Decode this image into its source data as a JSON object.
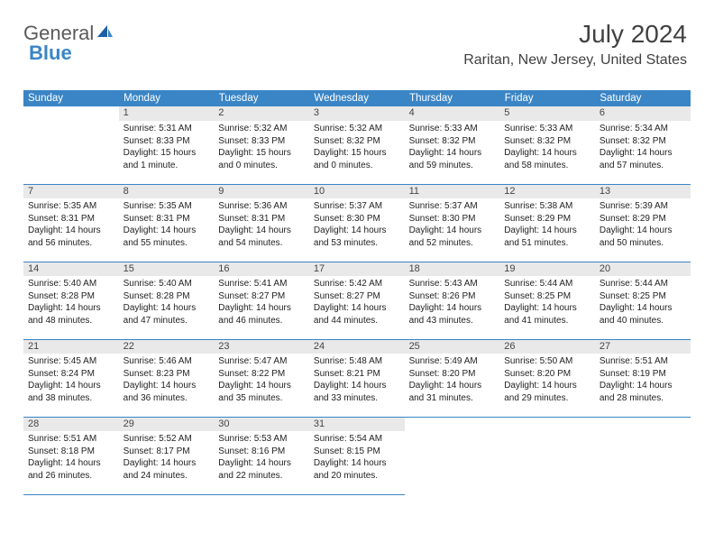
{
  "logo": {
    "text1": "General",
    "text2": "Blue"
  },
  "header": {
    "month": "July 2024",
    "location": "Raritan, New Jersey, United States"
  },
  "style": {
    "header_bg": "#3a85c6",
    "header_fg": "#ffffff",
    "daynum_bg": "#e9e9e9",
    "daynum_fg": "#444444",
    "divider_color": "#3a85c6",
    "body_font_size": 10,
    "title_font_size": 28,
    "location_font_size": 16,
    "weekday_font_size": 11.5
  },
  "weekdays": [
    "Sunday",
    "Monday",
    "Tuesday",
    "Wednesday",
    "Thursday",
    "Friday",
    "Saturday"
  ],
  "startOffset": 1,
  "days": [
    {
      "n": 1,
      "sr": "5:31 AM",
      "ss": "8:33 PM",
      "dl": "15 hours and 1 minute."
    },
    {
      "n": 2,
      "sr": "5:32 AM",
      "ss": "8:33 PM",
      "dl": "15 hours and 0 minutes."
    },
    {
      "n": 3,
      "sr": "5:32 AM",
      "ss": "8:32 PM",
      "dl": "15 hours and 0 minutes."
    },
    {
      "n": 4,
      "sr": "5:33 AM",
      "ss": "8:32 PM",
      "dl": "14 hours and 59 minutes."
    },
    {
      "n": 5,
      "sr": "5:33 AM",
      "ss": "8:32 PM",
      "dl": "14 hours and 58 minutes."
    },
    {
      "n": 6,
      "sr": "5:34 AM",
      "ss": "8:32 PM",
      "dl": "14 hours and 57 minutes."
    },
    {
      "n": 7,
      "sr": "5:35 AM",
      "ss": "8:31 PM",
      "dl": "14 hours and 56 minutes."
    },
    {
      "n": 8,
      "sr": "5:35 AM",
      "ss": "8:31 PM",
      "dl": "14 hours and 55 minutes."
    },
    {
      "n": 9,
      "sr": "5:36 AM",
      "ss": "8:31 PM",
      "dl": "14 hours and 54 minutes."
    },
    {
      "n": 10,
      "sr": "5:37 AM",
      "ss": "8:30 PM",
      "dl": "14 hours and 53 minutes."
    },
    {
      "n": 11,
      "sr": "5:37 AM",
      "ss": "8:30 PM",
      "dl": "14 hours and 52 minutes."
    },
    {
      "n": 12,
      "sr": "5:38 AM",
      "ss": "8:29 PM",
      "dl": "14 hours and 51 minutes."
    },
    {
      "n": 13,
      "sr": "5:39 AM",
      "ss": "8:29 PM",
      "dl": "14 hours and 50 minutes."
    },
    {
      "n": 14,
      "sr": "5:40 AM",
      "ss": "8:28 PM",
      "dl": "14 hours and 48 minutes."
    },
    {
      "n": 15,
      "sr": "5:40 AM",
      "ss": "8:28 PM",
      "dl": "14 hours and 47 minutes."
    },
    {
      "n": 16,
      "sr": "5:41 AM",
      "ss": "8:27 PM",
      "dl": "14 hours and 46 minutes."
    },
    {
      "n": 17,
      "sr": "5:42 AM",
      "ss": "8:27 PM",
      "dl": "14 hours and 44 minutes."
    },
    {
      "n": 18,
      "sr": "5:43 AM",
      "ss": "8:26 PM",
      "dl": "14 hours and 43 minutes."
    },
    {
      "n": 19,
      "sr": "5:44 AM",
      "ss": "8:25 PM",
      "dl": "14 hours and 41 minutes."
    },
    {
      "n": 20,
      "sr": "5:44 AM",
      "ss": "8:25 PM",
      "dl": "14 hours and 40 minutes."
    },
    {
      "n": 21,
      "sr": "5:45 AM",
      "ss": "8:24 PM",
      "dl": "14 hours and 38 minutes."
    },
    {
      "n": 22,
      "sr": "5:46 AM",
      "ss": "8:23 PM",
      "dl": "14 hours and 36 minutes."
    },
    {
      "n": 23,
      "sr": "5:47 AM",
      "ss": "8:22 PM",
      "dl": "14 hours and 35 minutes."
    },
    {
      "n": 24,
      "sr": "5:48 AM",
      "ss": "8:21 PM",
      "dl": "14 hours and 33 minutes."
    },
    {
      "n": 25,
      "sr": "5:49 AM",
      "ss": "8:20 PM",
      "dl": "14 hours and 31 minutes."
    },
    {
      "n": 26,
      "sr": "5:50 AM",
      "ss": "8:20 PM",
      "dl": "14 hours and 29 minutes."
    },
    {
      "n": 27,
      "sr": "5:51 AM",
      "ss": "8:19 PM",
      "dl": "14 hours and 28 minutes."
    },
    {
      "n": 28,
      "sr": "5:51 AM",
      "ss": "8:18 PM",
      "dl": "14 hours and 26 minutes."
    },
    {
      "n": 29,
      "sr": "5:52 AM",
      "ss": "8:17 PM",
      "dl": "14 hours and 24 minutes."
    },
    {
      "n": 30,
      "sr": "5:53 AM",
      "ss": "8:16 PM",
      "dl": "14 hours and 22 minutes."
    },
    {
      "n": 31,
      "sr": "5:54 AM",
      "ss": "8:15 PM",
      "dl": "14 hours and 20 minutes."
    }
  ],
  "labels": {
    "sunrise": "Sunrise: ",
    "sunset": "Sunset: ",
    "daylight": "Daylight: "
  }
}
